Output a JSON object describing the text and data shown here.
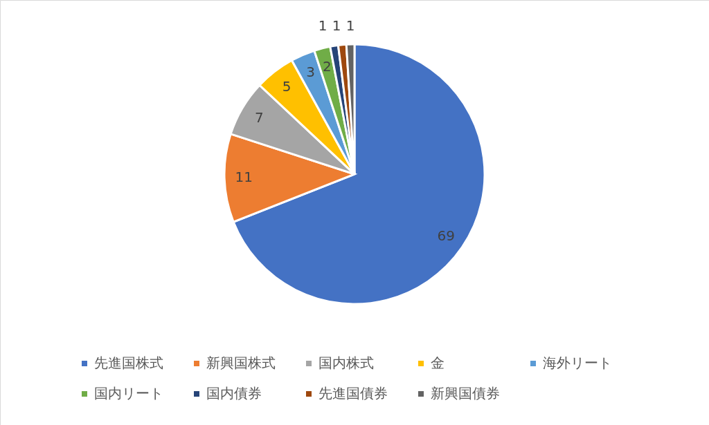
{
  "chart_data": {
    "type": "pie",
    "categories": [
      "先進国株式",
      "新興国株式",
      "国内株式",
      "金",
      "海外リート",
      "国内リート",
      "国内債券",
      "先進国債券",
      "新興国債券"
    ],
    "values": [
      69,
      11,
      7,
      5,
      3,
      2,
      1,
      1,
      1
    ],
    "colors": [
      "#4472c4",
      "#ed7d31",
      "#a5a5a5",
      "#ffc000",
      "#5b9bd5",
      "#70ad47",
      "#264478",
      "#9e480e",
      "#636363"
    ],
    "data_labels": true,
    "legend": "bottom"
  }
}
